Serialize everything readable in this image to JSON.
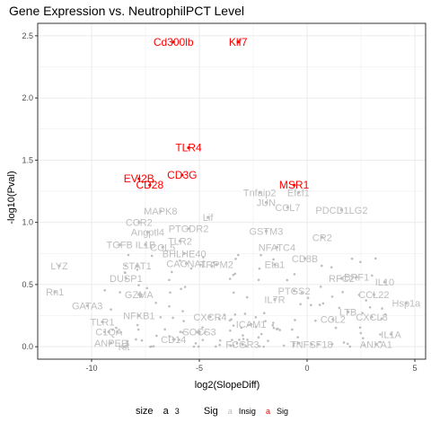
{
  "chart_data": {
    "type": "scatter",
    "title": "Gene Expression vs. NeutrophilPCT Level",
    "xlabel": "log2(SlopeDiff)",
    "ylabel": "-log10(Pval)",
    "xlim": [
      -12.5,
      5.5
    ],
    "ylim": [
      -0.1,
      2.6
    ],
    "xticks": [
      -10,
      -5,
      0,
      5
    ],
    "yticks": [
      0.0,
      0.5,
      1.0,
      1.5,
      2.0,
      2.5
    ],
    "grid": true,
    "colors": {
      "Insig": "#bebebe",
      "Sig": "#ff0000",
      "grid": "#ebebeb"
    },
    "legend": {
      "placement": "bottom",
      "size_title": "size",
      "size_key_glyph": "a",
      "size_value": "3",
      "sig_title": "Sig",
      "sig_key_glyph": "a",
      "items": [
        "Insig",
        "Sig"
      ]
    },
    "labeled_points": [
      {
        "label": "Cd300lb",
        "x": -6.2,
        "y": 2.45,
        "group": "Sig"
      },
      {
        "label": "Klf7",
        "x": -3.2,
        "y": 2.45,
        "group": "Sig"
      },
      {
        "label": "TLR4",
        "x": -5.5,
        "y": 1.6,
        "group": "Sig"
      },
      {
        "label": "CD3G",
        "x": -5.8,
        "y": 1.38,
        "group": "Sig"
      },
      {
        "label": "EVI2B",
        "x": -7.8,
        "y": 1.35,
        "group": "Sig"
      },
      {
        "label": "CD28",
        "x": -7.3,
        "y": 1.3,
        "group": "Sig"
      },
      {
        "label": "MSR1",
        "x": -0.6,
        "y": 1.3,
        "group": "Sig"
      },
      {
        "label": "Tnfaip2",
        "x": -2.2,
        "y": 1.24,
        "group": "Insig"
      },
      {
        "label": "Efcf1",
        "x": -0.4,
        "y": 1.24,
        "group": "Insig"
      },
      {
        "label": "JUN",
        "x": -1.9,
        "y": 1.16,
        "group": "Insig"
      },
      {
        "label": "CCL7",
        "x": -0.9,
        "y": 1.12,
        "group": "Insig"
      },
      {
        "label": "PDCD1LG2",
        "x": 1.6,
        "y": 1.1,
        "group": "Insig"
      },
      {
        "label": "MAPK8",
        "x": -6.8,
        "y": 1.09,
        "group": "Insig"
      },
      {
        "label": "Lif",
        "x": -4.6,
        "y": 1.04,
        "group": "Insig"
      },
      {
        "label": "CCR2",
        "x": -7.8,
        "y": 1.0,
        "group": "Insig"
      },
      {
        "label": "PTGDR2",
        "x": -5.5,
        "y": 0.95,
        "group": "Insig"
      },
      {
        "label": "GSTM3",
        "x": -1.9,
        "y": 0.93,
        "group": "Insig"
      },
      {
        "label": "Angptl4",
        "x": -7.4,
        "y": 0.92,
        "group": "Insig"
      },
      {
        "label": "CR2",
        "x": 0.7,
        "y": 0.88,
        "group": "Insig"
      },
      {
        "label": "TLR2",
        "x": -5.9,
        "y": 0.85,
        "group": "Insig"
      },
      {
        "label": "TGFB",
        "x": -8.7,
        "y": 0.82,
        "group": "Insig"
      },
      {
        "label": "IL1B",
        "x": -7.5,
        "y": 0.82,
        "group": "Insig"
      },
      {
        "label": "CCL5",
        "x": -6.7,
        "y": 0.8,
        "group": "Insig"
      },
      {
        "label": "NFATC4",
        "x": -1.4,
        "y": 0.8,
        "group": "Insig"
      },
      {
        "label": "BHLHE40",
        "x": -5.7,
        "y": 0.75,
        "group": "Insig"
      },
      {
        "label": "CD8B",
        "x": -0.1,
        "y": 0.71,
        "group": "Insig"
      },
      {
        "label": "LYZ",
        "x": -11.5,
        "y": 0.65,
        "group": "Insig"
      },
      {
        "label": "STAT1",
        "x": -7.9,
        "y": 0.65,
        "group": "Insig"
      },
      {
        "label": "CACNA1",
        "x": -5.6,
        "y": 0.67,
        "group": "Insig"
      },
      {
        "label": "TRPM2",
        "x": -4.2,
        "y": 0.66,
        "group": "Insig"
      },
      {
        "label": "Eta1",
        "x": -1.5,
        "y": 0.66,
        "group": "Insig"
      },
      {
        "label": "DUSP1",
        "x": -8.4,
        "y": 0.55,
        "group": "Insig"
      },
      {
        "label": "BRF1",
        "x": 2.3,
        "y": 0.56,
        "group": "Insig"
      },
      {
        "label": "IL10",
        "x": 3.6,
        "y": 0.52,
        "group": "Insig"
      },
      {
        "label": "RFC2",
        "x": 1.6,
        "y": 0.55,
        "group": "Insig"
      },
      {
        "label": "Rn1",
        "x": -11.7,
        "y": 0.44,
        "group": "Insig"
      },
      {
        "label": "GZMA",
        "x": -7.8,
        "y": 0.42,
        "group": "Insig"
      },
      {
        "label": "CCL22",
        "x": 3.1,
        "y": 0.42,
        "group": "Insig"
      },
      {
        "label": "GATA3",
        "x": -10.2,
        "y": 0.33,
        "group": "Insig"
      },
      {
        "label": "Hsp1a",
        "x": 4.6,
        "y": 0.35,
        "group": "Insig"
      },
      {
        "label": "NFKB1",
        "x": -7.8,
        "y": 0.25,
        "group": "Insig"
      },
      {
        "label": "TLR1",
        "x": -9.5,
        "y": 0.2,
        "group": "Insig"
      },
      {
        "label": "C1QA",
        "x": -9.2,
        "y": 0.12,
        "group": "Insig"
      },
      {
        "label": "ANPEP",
        "x": -9.1,
        "y": 0.03,
        "group": "Insig"
      },
      {
        "label": "Kit",
        "x": -8.5,
        "y": 0.0,
        "group": "Insig"
      },
      {
        "label": "CXCR4",
        "x": -4.5,
        "y": 0.24,
        "group": "Insig"
      },
      {
        "label": "ICAM1",
        "x": -2.6,
        "y": 0.18,
        "group": "Insig"
      },
      {
        "label": "IL7R",
        "x": -1.5,
        "y": 0.38,
        "group": "Insig"
      },
      {
        "label": "PTGS2",
        "x": -0.6,
        "y": 0.45,
        "group": "Insig"
      },
      {
        "label": "CCL2",
        "x": 1.2,
        "y": 0.22,
        "group": "Insig"
      },
      {
        "label": "LTB",
        "x": 1.9,
        "y": 0.28,
        "group": "Insig"
      },
      {
        "label": "CXCL8",
        "x": 3.0,
        "y": 0.24,
        "group": "Insig"
      },
      {
        "label": "IL1A",
        "x": 3.9,
        "y": 0.1,
        "group": "Insig"
      },
      {
        "label": "ANXA1",
        "x": 3.2,
        "y": 0.02,
        "group": "Insig"
      },
      {
        "label": "TNFSF18",
        "x": 0.2,
        "y": 0.02,
        "group": "Insig"
      },
      {
        "label": "FCGR3",
        "x": -3.0,
        "y": 0.02,
        "group": "Insig"
      },
      {
        "label": "CD14",
        "x": -6.2,
        "y": 0.06,
        "group": "Insig"
      },
      {
        "label": "SOCS3",
        "x": -5.0,
        "y": 0.12,
        "group": "Insig"
      }
    ]
  }
}
